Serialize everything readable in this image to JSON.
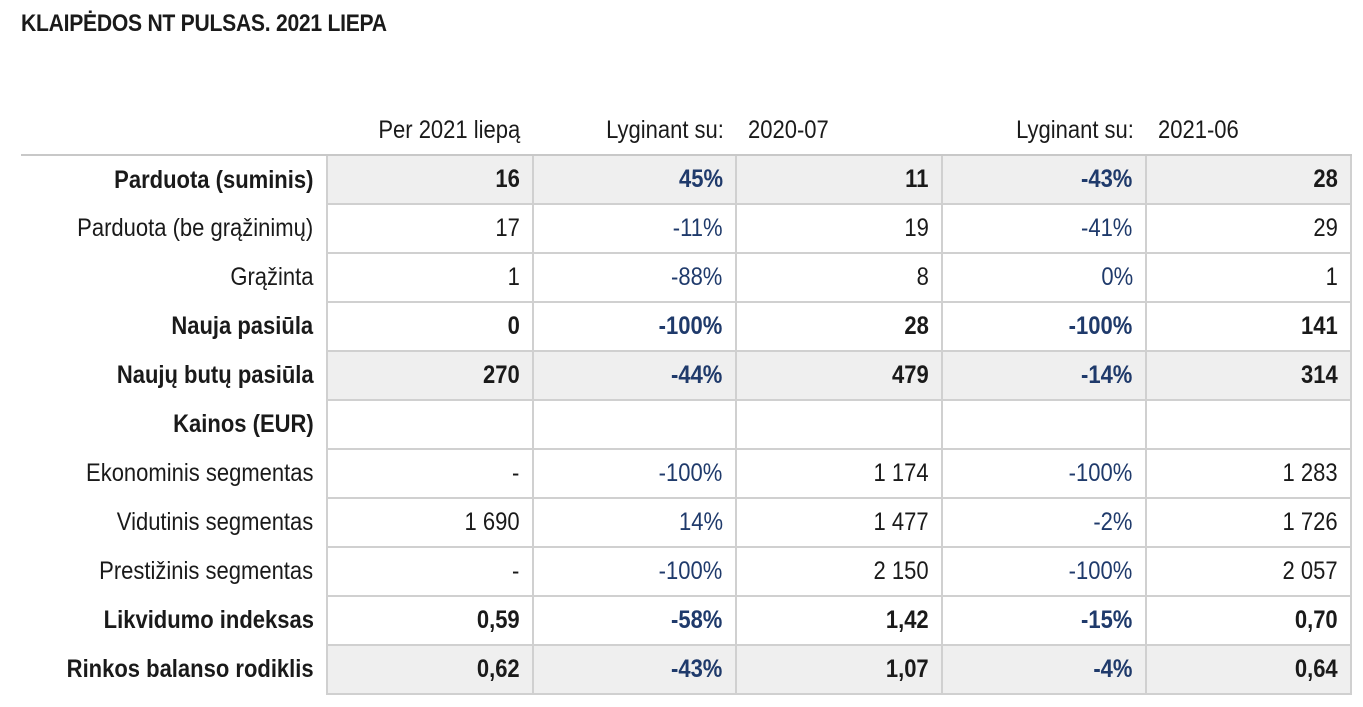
{
  "title": "KLAIPĖDOS NT PULSAS. 2021 LIEPA",
  "header": {
    "current": "Per 2021 liepą",
    "compare_label_1": "Lyginant su:",
    "period_1": "2020-07",
    "compare_label_2": "Lyginant su:",
    "period_2": "2021-06"
  },
  "rows": [
    {
      "label": "Parduota (suminis)",
      "current": "16",
      "chg1": "45%",
      "prev1": "11",
      "chg2": "-43%",
      "prev2": "28",
      "bold": true,
      "shaded": true
    },
    {
      "label": "Parduota (be grąžinimų)",
      "current": "17",
      "chg1": "-11%",
      "prev1": "19",
      "chg2": "-41%",
      "prev2": "29",
      "bold": false,
      "shaded": false
    },
    {
      "label": "Grąžinta",
      "current": "1",
      "chg1": "-88%",
      "prev1": "8",
      "chg2": "0%",
      "prev2": "1",
      "bold": false,
      "shaded": false
    },
    {
      "label": "Nauja pasiūla",
      "current": "0",
      "chg1": "-100%",
      "prev1": "28",
      "chg2": "-100%",
      "prev2": "141",
      "bold": true,
      "shaded": false
    },
    {
      "label": "Naujų butų pasiūla",
      "current": "270",
      "chg1": "-44%",
      "prev1": "479",
      "chg2": "-14%",
      "prev2": "314",
      "bold": true,
      "shaded": true
    },
    {
      "label": "Kainos (EUR)",
      "current": "",
      "chg1": "",
      "prev1": "",
      "chg2": "",
      "prev2": "",
      "bold": true,
      "shaded": false
    },
    {
      "label": "Ekonominis segmentas",
      "current": "-",
      "chg1": "-100%",
      "prev1": "1 174",
      "chg2": "-100%",
      "prev2": "1 283",
      "bold": false,
      "shaded": false
    },
    {
      "label": "Vidutinis segmentas",
      "current": "1 690",
      "chg1": "14%",
      "prev1": "1 477",
      "chg2": "-2%",
      "prev2": "1 726",
      "bold": false,
      "shaded": false
    },
    {
      "label": "Prestižinis segmentas",
      "current": "-",
      "chg1": "-100%",
      "prev1": "2 150",
      "chg2": "-100%",
      "prev2": "2 057",
      "bold": false,
      "shaded": false
    },
    {
      "label": "Likvidumo indeksas",
      "current": "0,59",
      "chg1": "-58%",
      "prev1": "1,42",
      "chg2": "-15%",
      "prev2": "0,70",
      "bold": true,
      "shaded": false
    },
    {
      "label": "Rinkos balanso rodiklis",
      "current": "0,62",
      "chg1": "-43%",
      "prev1": "1,07",
      "chg2": "-4%",
      "prev2": "0,64",
      "bold": true,
      "shaded": true
    }
  ]
}
